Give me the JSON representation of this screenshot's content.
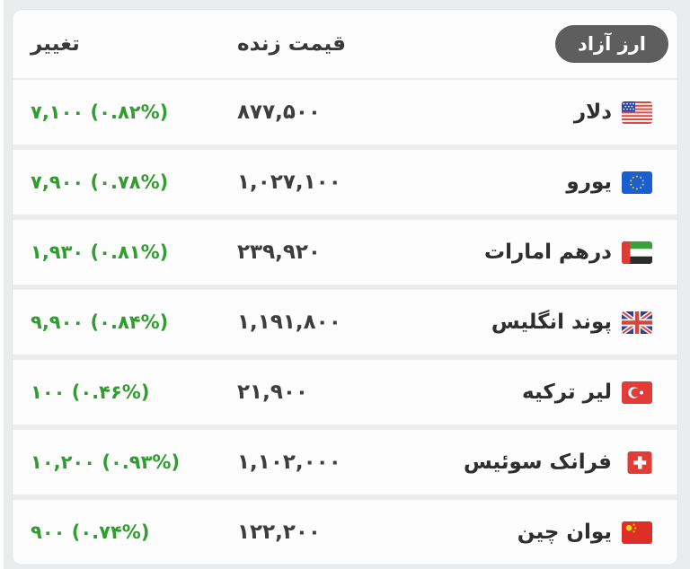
{
  "colors": {
    "positive": "#2f9e2f",
    "badge_bg": "#5e5e5e",
    "badge_text": "#ffffff",
    "separator": "#ececec",
    "card_bg": "#fdfdfe",
    "app_bg": "#ebecee"
  },
  "header": {
    "badge_label": "ارز آزاد",
    "price_column_label": "قیمت زنده",
    "change_column_label": "تغییر"
  },
  "table": {
    "rows": [
      {
        "name": "دلار",
        "flag": "us-flag",
        "price": "۸۷۷,۵۰۰",
        "change": "۷,۱۰۰ (۰.۸۲%)",
        "trend": "up"
      },
      {
        "name": "یورو",
        "flag": "eu-flag",
        "price": "۱,۰۲۷,۱۰۰",
        "change": "۷,۹۰۰ (۰.۷۸%)",
        "trend": "up"
      },
      {
        "name": "درهم امارات",
        "flag": "uae-flag",
        "price": "۲۳۹,۹۲۰",
        "change": "۱,۹۳۰ (۰.۸۱%)",
        "trend": "up"
      },
      {
        "name": "پوند انگلیس",
        "flag": "uk-flag",
        "price": "۱,۱۹۱,۸۰۰",
        "change": "۹,۹۰۰ (۰.۸۴%)",
        "trend": "up"
      },
      {
        "name": "لیر ترکیه",
        "flag": "turkey-flag",
        "price": "۲۱,۹۰۰",
        "change": "۱۰۰ (۰.۴۶%)",
        "trend": "up"
      },
      {
        "name": "فرانک سوئیس",
        "flag": "switzerland-flag",
        "price": "۱,۱۰۲,۰۰۰",
        "change": "۱۰,۲۰۰ (۰.۹۳%)",
        "trend": "up"
      },
      {
        "name": "یوان چین",
        "flag": "china-flag",
        "price": "۱۲۲,۲۰۰",
        "change": "۹۰۰ (۰.۷۴%)",
        "trend": "up"
      }
    ]
  }
}
